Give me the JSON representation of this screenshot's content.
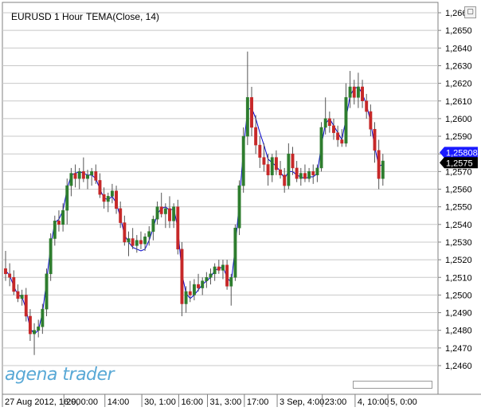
{
  "chart_data": {
    "type": "candlestick",
    "title": "EURUSD 1 Hour",
    "indicator": "TEMA(Close, 14)",
    "ylim": [
      1.2448,
      1.2674
    ],
    "y_ticks": [
      "1,2460",
      "1,2470",
      "1,2480",
      "1,2490",
      "1,2500",
      "1,2510",
      "1,2520",
      "1,2530",
      "1,2540",
      "1,2550",
      "1,2560",
      "1,2570",
      "1,2580",
      "1,2590",
      "1,2600",
      "1,2610",
      "1,2620",
      "1,2630",
      "1,2640",
      "1,2650",
      "1,2660"
    ],
    "y_tick_values": [
      1.246,
      1.247,
      1.248,
      1.249,
      1.25,
      1.251,
      1.252,
      1.253,
      1.254,
      1.255,
      1.256,
      1.257,
      1.258,
      1.259,
      1.26,
      1.261,
      1.262,
      1.263,
      1.264,
      1.265,
      1.266
    ],
    "x_labels": [
      "27 Aug 2012, 16:00",
      "29, 0:00",
      "14:00",
      "30, 1:00",
      "16:00",
      "31, 3:00",
      "17:00",
      "3 Sep, 4:00",
      "23:00",
      "4, 10:00",
      "5, 0:00"
    ],
    "x_label_bar_index": [
      0,
      15,
      25,
      34,
      43,
      50,
      59,
      67,
      78,
      86,
      94
    ],
    "current_price_label": "1,25808",
    "current_price": 1.25808,
    "last_price_label": "1,2575",
    "last_price": 1.2575,
    "grid": true,
    "colors": {
      "up": "#2e7d2e",
      "down": "#c62828",
      "tema": "#0000cc",
      "price_tag": "#1a1aff",
      "last_tag": "#000000"
    },
    "candles": [
      [
        1.2515,
        1.2525,
        1.2508,
        1.2512
      ],
      [
        1.2512,
        1.2518,
        1.2505,
        1.251
      ],
      [
        1.251,
        1.2514,
        1.25,
        1.2502
      ],
      [
        1.2502,
        1.2506,
        1.2496,
        1.2498
      ],
      [
        1.2498,
        1.2503,
        1.2494,
        1.25
      ],
      [
        1.25,
        1.2504,
        1.2485,
        1.2488
      ],
      [
        1.2488,
        1.2492,
        1.2474,
        1.2478
      ],
      [
        1.2478,
        1.2484,
        1.2466,
        1.248
      ],
      [
        1.248,
        1.2486,
        1.2476,
        1.2482
      ],
      [
        1.2482,
        1.2495,
        1.2478,
        1.2492
      ],
      [
        1.2492,
        1.2515,
        1.2488,
        1.2512
      ],
      [
        1.2512,
        1.2535,
        1.2508,
        1.2532
      ],
      [
        1.2532,
        1.2545,
        1.2528,
        1.2542
      ],
      [
        1.2542,
        1.2548,
        1.2536,
        1.254
      ],
      [
        1.254,
        1.2552,
        1.2536,
        1.2548
      ],
      [
        1.2548,
        1.2566,
        1.254,
        1.2562
      ],
      [
        1.2562,
        1.2572,
        1.2556,
        1.2569
      ],
      [
        1.2569,
        1.2574,
        1.2561,
        1.2566
      ],
      [
        1.2566,
        1.2572,
        1.256,
        1.257
      ],
      [
        1.257,
        1.2578,
        1.2564,
        1.2566
      ],
      [
        1.2566,
        1.2571,
        1.256,
        1.2568
      ],
      [
        1.2568,
        1.2572,
        1.2562,
        1.257
      ],
      [
        1.257,
        1.2574,
        1.2563,
        1.2565
      ],
      [
        1.2565,
        1.2569,
        1.2555,
        1.2557
      ],
      [
        1.2557,
        1.2561,
        1.2549,
        1.2553
      ],
      [
        1.2553,
        1.2558,
        1.2547,
        1.2556
      ],
      [
        1.2556,
        1.2563,
        1.2552,
        1.2559
      ],
      [
        1.2559,
        1.2562,
        1.2546,
        1.2549
      ],
      [
        1.2549,
        1.2553,
        1.2538,
        1.2541
      ],
      [
        1.2541,
        1.2545,
        1.2528,
        1.253
      ],
      [
        1.253,
        1.2536,
        1.2522,
        1.2532
      ],
      [
        1.2532,
        1.2538,
        1.2526,
        1.2528
      ],
      [
        1.2528,
        1.2534,
        1.2524,
        1.2531
      ],
      [
        1.2531,
        1.2536,
        1.2526,
        1.2529
      ],
      [
        1.2529,
        1.2535,
        1.2525,
        1.2533
      ],
      [
        1.2533,
        1.2539,
        1.2528,
        1.2536
      ],
      [
        1.2536,
        1.2545,
        1.2531,
        1.2543
      ],
      [
        1.2543,
        1.2553,
        1.254,
        1.255
      ],
      [
        1.255,
        1.2558,
        1.2544,
        1.2546
      ],
      [
        1.2546,
        1.2552,
        1.2538,
        1.2549
      ],
      [
        1.2549,
        1.2556,
        1.2538,
        1.2542
      ],
      [
        1.2542,
        1.2552,
        1.2538,
        1.255
      ],
      [
        1.255,
        1.2554,
        1.2523,
        1.2526
      ],
      [
        1.2526,
        1.253,
        1.2488,
        1.2495
      ],
      [
        1.2495,
        1.2505,
        1.249,
        1.2502
      ],
      [
        1.2502,
        1.2508,
        1.2496,
        1.25
      ],
      [
        1.25,
        1.2509,
        1.2497,
        1.2506
      ],
      [
        1.2506,
        1.2512,
        1.2502,
        1.2504
      ],
      [
        1.2504,
        1.251,
        1.25,
        1.2508
      ],
      [
        1.2508,
        1.2513,
        1.2504,
        1.251
      ],
      [
        1.251,
        1.2515,
        1.2506,
        1.2512
      ],
      [
        1.2512,
        1.2518,
        1.2508,
        1.2516
      ],
      [
        1.2516,
        1.252,
        1.2512,
        1.2514
      ],
      [
        1.2514,
        1.252,
        1.2509,
        1.2517
      ],
      [
        1.2517,
        1.252,
        1.2503,
        1.2505
      ],
      [
        1.2505,
        1.2512,
        1.2494,
        1.251
      ],
      [
        1.251,
        1.254,
        1.2508,
        1.2538
      ],
      [
        1.2538,
        1.2565,
        1.2534,
        1.2562
      ],
      [
        1.2562,
        1.2595,
        1.2558,
        1.259
      ],
      [
        1.259,
        1.2638,
        1.2585,
        1.2612
      ],
      [
        1.2612,
        1.2618,
        1.259,
        1.2595
      ],
      [
        1.2595,
        1.2602,
        1.258,
        1.2585
      ],
      [
        1.2585,
        1.259,
        1.2572,
        1.2578
      ],
      [
        1.2578,
        1.2586,
        1.257,
        1.2574
      ],
      [
        1.2574,
        1.258,
        1.2562,
        1.2568
      ],
      [
        1.2568,
        1.258,
        1.2564,
        1.2578
      ],
      [
        1.2578,
        1.2582,
        1.2568,
        1.2571
      ],
      [
        1.2571,
        1.2576,
        1.2566,
        1.2568
      ],
      [
        1.2568,
        1.2572,
        1.2558,
        1.2562
      ],
      [
        1.2562,
        1.2586,
        1.256,
        1.258
      ],
      [
        1.258,
        1.2584,
        1.2568,
        1.2572
      ],
      [
        1.2572,
        1.2576,
        1.2564,
        1.2566
      ],
      [
        1.2566,
        1.2572,
        1.2562,
        1.2569
      ],
      [
        1.2569,
        1.2574,
        1.2564,
        1.2566
      ],
      [
        1.2566,
        1.2572,
        1.2564,
        1.257
      ],
      [
        1.257,
        1.2574,
        1.2563,
        1.2568
      ],
      [
        1.2568,
        1.2574,
        1.2564,
        1.2572
      ],
      [
        1.2572,
        1.2598,
        1.257,
        1.2595
      ],
      [
        1.2595,
        1.2612,
        1.2591,
        1.26
      ],
      [
        1.26,
        1.2604,
        1.2592,
        1.2596
      ],
      [
        1.2596,
        1.26,
        1.2588,
        1.2592
      ],
      [
        1.2592,
        1.2596,
        1.2584,
        1.2588
      ],
      [
        1.2588,
        1.2594,
        1.2584,
        1.2586
      ],
      [
        1.2586,
        1.262,
        1.2584,
        1.2612
      ],
      [
        1.2612,
        1.2627,
        1.2606,
        1.2618
      ],
      [
        1.2618,
        1.2622,
        1.2608,
        1.2612
      ],
      [
        1.2612,
        1.2626,
        1.2606,
        1.2618
      ],
      [
        1.2618,
        1.2622,
        1.2606,
        1.261
      ],
      [
        1.261,
        1.2614,
        1.26,
        1.2604
      ],
      [
        1.2604,
        1.2608,
        1.259,
        1.2594
      ],
      [
        1.2594,
        1.2598,
        1.2575,
        1.2582
      ],
      [
        1.2582,
        1.2588,
        1.256,
        1.2566
      ],
      [
        1.2566,
        1.258,
        1.2562,
        1.2576
      ]
    ],
    "tema": [
      1.2514,
      1.2511,
      1.2505,
      1.25,
      1.2499,
      1.2492,
      1.2481,
      1.2478,
      1.248,
      1.249,
      1.2508,
      1.2528,
      1.2541,
      1.2543,
      1.2548,
      1.256,
      1.2568,
      1.2569,
      1.257,
      1.2569,
      1.2568,
      1.2568,
      1.2566,
      1.256,
      1.2555,
      1.2554,
      1.2556,
      1.2552,
      1.2544,
      1.2534,
      1.253,
      1.2527,
      1.2526,
      1.2525,
      1.2526,
      1.2531,
      1.2538,
      1.2546,
      1.2549,
      1.255,
      1.2548,
      1.2549,
      1.2538,
      1.2512,
      1.2501,
      1.2498,
      1.25,
      1.2503,
      1.2506,
      1.2508,
      1.251,
      1.2514,
      1.2515,
      1.2516,
      1.251,
      1.2507,
      1.2527,
      1.2553,
      1.2583,
      1.2605,
      1.2606,
      1.26,
      1.2592,
      1.2585,
      1.2577,
      1.2575,
      1.2573,
      1.257,
      1.2566,
      1.257,
      1.257,
      1.2568,
      1.2567,
      1.2566,
      1.2567,
      1.2567,
      1.2569,
      1.2585,
      1.2597,
      1.26,
      1.2596,
      1.2592,
      1.2588,
      1.26,
      1.2613,
      1.2617,
      1.2618,
      1.2614,
      1.2608,
      1.2598,
      1.2584,
      1.2573,
      1.2574
    ]
  },
  "window": {
    "restore_glyph": "▢",
    "close_glyph": "×"
  },
  "branding": {
    "logo_text": "agena trader"
  }
}
